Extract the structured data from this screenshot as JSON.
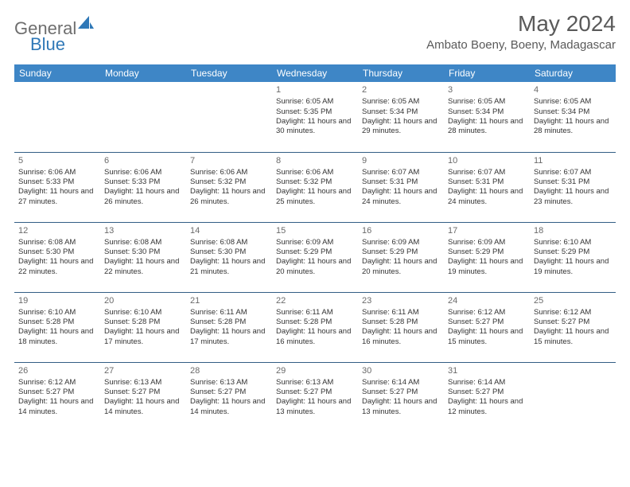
{
  "brand": {
    "text_general": "General",
    "text_blue": "Blue",
    "icon_color": "#2f78b7"
  },
  "header": {
    "month_title": "May 2024",
    "location": "Ambato Boeny, Boeny, Madagascar"
  },
  "colors": {
    "header_bg": "#3e86c6",
    "header_text": "#ffffff",
    "row_border": "#335e85",
    "page_bg": "#ffffff",
    "title_text": "#5a5a5a",
    "body_text": "#333333",
    "day_num_text": "#6a6a6a"
  },
  "typography": {
    "month_title_fontsize": 28,
    "location_fontsize": 15,
    "dayhead_fontsize": 12,
    "daynum_fontsize": 11,
    "cell_fontsize": 9.5
  },
  "weekdays": [
    "Sunday",
    "Monday",
    "Tuesday",
    "Wednesday",
    "Thursday",
    "Friday",
    "Saturday"
  ],
  "weeks": [
    [
      {
        "day": "",
        "sunrise": "",
        "sunset": "",
        "daylight": ""
      },
      {
        "day": "",
        "sunrise": "",
        "sunset": "",
        "daylight": ""
      },
      {
        "day": "",
        "sunrise": "",
        "sunset": "",
        "daylight": ""
      },
      {
        "day": "1",
        "sunrise": "Sunrise: 6:05 AM",
        "sunset": "Sunset: 5:35 PM",
        "daylight": "Daylight: 11 hours and 30 minutes."
      },
      {
        "day": "2",
        "sunrise": "Sunrise: 6:05 AM",
        "sunset": "Sunset: 5:34 PM",
        "daylight": "Daylight: 11 hours and 29 minutes."
      },
      {
        "day": "3",
        "sunrise": "Sunrise: 6:05 AM",
        "sunset": "Sunset: 5:34 PM",
        "daylight": "Daylight: 11 hours and 28 minutes."
      },
      {
        "day": "4",
        "sunrise": "Sunrise: 6:05 AM",
        "sunset": "Sunset: 5:34 PM",
        "daylight": "Daylight: 11 hours and 28 minutes."
      }
    ],
    [
      {
        "day": "5",
        "sunrise": "Sunrise: 6:06 AM",
        "sunset": "Sunset: 5:33 PM",
        "daylight": "Daylight: 11 hours and 27 minutes."
      },
      {
        "day": "6",
        "sunrise": "Sunrise: 6:06 AM",
        "sunset": "Sunset: 5:33 PM",
        "daylight": "Daylight: 11 hours and 26 minutes."
      },
      {
        "day": "7",
        "sunrise": "Sunrise: 6:06 AM",
        "sunset": "Sunset: 5:32 PM",
        "daylight": "Daylight: 11 hours and 26 minutes."
      },
      {
        "day": "8",
        "sunrise": "Sunrise: 6:06 AM",
        "sunset": "Sunset: 5:32 PM",
        "daylight": "Daylight: 11 hours and 25 minutes."
      },
      {
        "day": "9",
        "sunrise": "Sunrise: 6:07 AM",
        "sunset": "Sunset: 5:31 PM",
        "daylight": "Daylight: 11 hours and 24 minutes."
      },
      {
        "day": "10",
        "sunrise": "Sunrise: 6:07 AM",
        "sunset": "Sunset: 5:31 PM",
        "daylight": "Daylight: 11 hours and 24 minutes."
      },
      {
        "day": "11",
        "sunrise": "Sunrise: 6:07 AM",
        "sunset": "Sunset: 5:31 PM",
        "daylight": "Daylight: 11 hours and 23 minutes."
      }
    ],
    [
      {
        "day": "12",
        "sunrise": "Sunrise: 6:08 AM",
        "sunset": "Sunset: 5:30 PM",
        "daylight": "Daylight: 11 hours and 22 minutes."
      },
      {
        "day": "13",
        "sunrise": "Sunrise: 6:08 AM",
        "sunset": "Sunset: 5:30 PM",
        "daylight": "Daylight: 11 hours and 22 minutes."
      },
      {
        "day": "14",
        "sunrise": "Sunrise: 6:08 AM",
        "sunset": "Sunset: 5:30 PM",
        "daylight": "Daylight: 11 hours and 21 minutes."
      },
      {
        "day": "15",
        "sunrise": "Sunrise: 6:09 AM",
        "sunset": "Sunset: 5:29 PM",
        "daylight": "Daylight: 11 hours and 20 minutes."
      },
      {
        "day": "16",
        "sunrise": "Sunrise: 6:09 AM",
        "sunset": "Sunset: 5:29 PM",
        "daylight": "Daylight: 11 hours and 20 minutes."
      },
      {
        "day": "17",
        "sunrise": "Sunrise: 6:09 AM",
        "sunset": "Sunset: 5:29 PM",
        "daylight": "Daylight: 11 hours and 19 minutes."
      },
      {
        "day": "18",
        "sunrise": "Sunrise: 6:10 AM",
        "sunset": "Sunset: 5:29 PM",
        "daylight": "Daylight: 11 hours and 19 minutes."
      }
    ],
    [
      {
        "day": "19",
        "sunrise": "Sunrise: 6:10 AM",
        "sunset": "Sunset: 5:28 PM",
        "daylight": "Daylight: 11 hours and 18 minutes."
      },
      {
        "day": "20",
        "sunrise": "Sunrise: 6:10 AM",
        "sunset": "Sunset: 5:28 PM",
        "daylight": "Daylight: 11 hours and 17 minutes."
      },
      {
        "day": "21",
        "sunrise": "Sunrise: 6:11 AM",
        "sunset": "Sunset: 5:28 PM",
        "daylight": "Daylight: 11 hours and 17 minutes."
      },
      {
        "day": "22",
        "sunrise": "Sunrise: 6:11 AM",
        "sunset": "Sunset: 5:28 PM",
        "daylight": "Daylight: 11 hours and 16 minutes."
      },
      {
        "day": "23",
        "sunrise": "Sunrise: 6:11 AM",
        "sunset": "Sunset: 5:28 PM",
        "daylight": "Daylight: 11 hours and 16 minutes."
      },
      {
        "day": "24",
        "sunrise": "Sunrise: 6:12 AM",
        "sunset": "Sunset: 5:27 PM",
        "daylight": "Daylight: 11 hours and 15 minutes."
      },
      {
        "day": "25",
        "sunrise": "Sunrise: 6:12 AM",
        "sunset": "Sunset: 5:27 PM",
        "daylight": "Daylight: 11 hours and 15 minutes."
      }
    ],
    [
      {
        "day": "26",
        "sunrise": "Sunrise: 6:12 AM",
        "sunset": "Sunset: 5:27 PM",
        "daylight": "Daylight: 11 hours and 14 minutes."
      },
      {
        "day": "27",
        "sunrise": "Sunrise: 6:13 AM",
        "sunset": "Sunset: 5:27 PM",
        "daylight": "Daylight: 11 hours and 14 minutes."
      },
      {
        "day": "28",
        "sunrise": "Sunrise: 6:13 AM",
        "sunset": "Sunset: 5:27 PM",
        "daylight": "Daylight: 11 hours and 14 minutes."
      },
      {
        "day": "29",
        "sunrise": "Sunrise: 6:13 AM",
        "sunset": "Sunset: 5:27 PM",
        "daylight": "Daylight: 11 hours and 13 minutes."
      },
      {
        "day": "30",
        "sunrise": "Sunrise: 6:14 AM",
        "sunset": "Sunset: 5:27 PM",
        "daylight": "Daylight: 11 hours and 13 minutes."
      },
      {
        "day": "31",
        "sunrise": "Sunrise: 6:14 AM",
        "sunset": "Sunset: 5:27 PM",
        "daylight": "Daylight: 11 hours and 12 minutes."
      },
      {
        "day": "",
        "sunrise": "",
        "sunset": "",
        "daylight": ""
      }
    ]
  ]
}
